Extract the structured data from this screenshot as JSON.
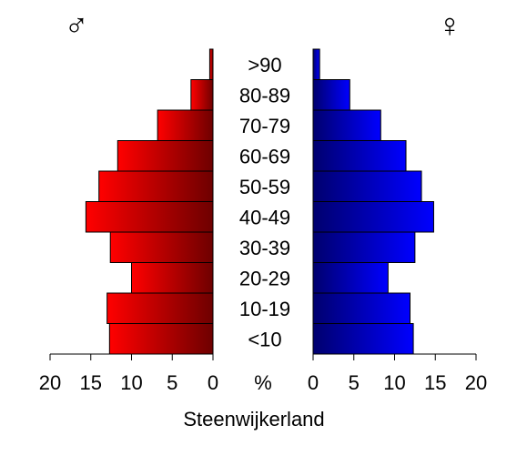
{
  "chart_data": {
    "type": "bar",
    "subtype": "population-pyramid",
    "title": "Steenwijkerland",
    "male_symbol": "♂",
    "female_symbol": "♀",
    "unit_label": "%",
    "categories": [
      "<10",
      "10-19",
      "20-29",
      "30-39",
      "40-49",
      "50-59",
      "60-69",
      "70-79",
      "80-89",
      ">90"
    ],
    "series": [
      {
        "name": "♂",
        "values": [
          12.7,
          13.0,
          10.0,
          12.6,
          15.6,
          14.0,
          11.7,
          6.8,
          2.7,
          0.4
        ],
        "color_light": "#ff0000",
        "color_dark": "#6e0000"
      },
      {
        "name": "♀",
        "values": [
          12.3,
          11.9,
          9.2,
          12.5,
          14.8,
          13.3,
          11.4,
          8.3,
          4.5,
          0.8
        ],
        "color_light": "#0000ff",
        "color_dark": "#00006e"
      }
    ],
    "xlim": [
      0,
      20
    ],
    "ticks": [
      "20",
      "15",
      "10",
      "5",
      "0",
      "0",
      "5",
      "10",
      "15",
      "20"
    ]
  }
}
